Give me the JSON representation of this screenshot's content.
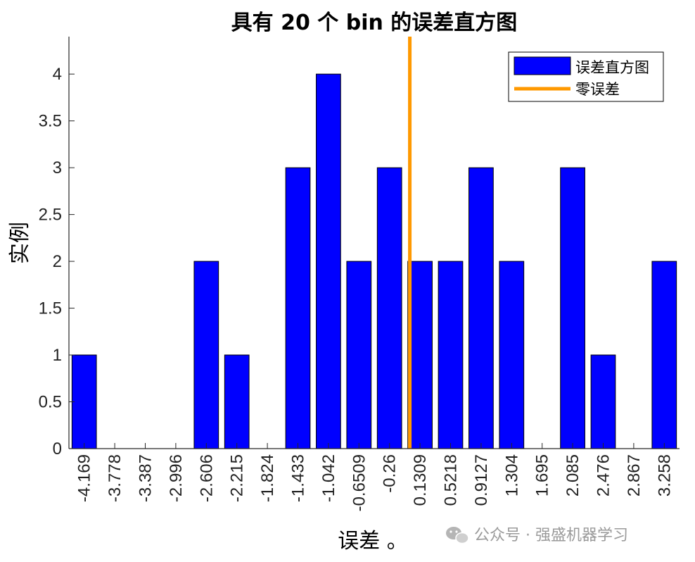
{
  "chart_data": {
    "type": "bar",
    "title": "具有 20 个 bin 的误差直方图",
    "xlabel": "误差 。",
    "ylabel": "实例",
    "categories": [
      "-4.169",
      "-3.778",
      "-3.387",
      "-2.996",
      "-2.606",
      "-2.215",
      "-1.824",
      "-1.433",
      "-1.042",
      "-0.6509",
      "-0.26",
      "0.1309",
      "0.5218",
      "0.9127",
      "1.304",
      "1.695",
      "2.085",
      "2.476",
      "2.867",
      "3.258"
    ],
    "values": [
      1,
      0,
      0,
      0,
      2,
      1,
      0,
      3,
      4,
      2,
      3,
      2,
      2,
      3,
      2,
      0,
      3,
      1,
      0,
      2
    ],
    "yticks": [
      "0",
      "0.5",
      "1",
      "1.5",
      "2",
      "2.5",
      "3",
      "3.5",
      "4"
    ],
    "ylim": [
      0,
      4.4
    ],
    "zero_line_value": 0,
    "series": [
      {
        "name": "误差直方图",
        "color": "#0000ff"
      },
      {
        "name": "零误差",
        "color": "#ff9900"
      }
    ],
    "legend_position": "top-right",
    "grid": false
  },
  "watermark": {
    "text": "公众号 · 强盛机器学习",
    "icon": "wechat-icon"
  }
}
